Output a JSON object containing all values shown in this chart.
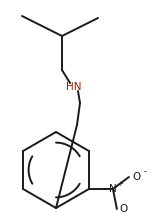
{
  "bg_color": "#ffffff",
  "line_color": "#1a1a1a",
  "hn_color": "#8B2500",
  "line_width": 1.4,
  "figsize": [
    1.55,
    2.19
  ],
  "dpi": 100,
  "HN_label": "HN",
  "HN_fontsize": 7.5,
  "N_label": "N",
  "N_plus": "+",
  "O_label": "O",
  "O_minus": "-",
  "nitro_fontsize": 7.5
}
